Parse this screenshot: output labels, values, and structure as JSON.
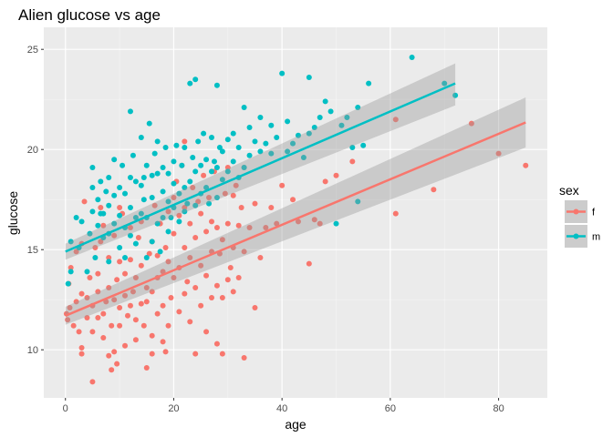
{
  "chart_data": {
    "type": "scatter",
    "title": "Alien glucose vs age",
    "xlabel": "age",
    "ylabel": "glucose",
    "xlim": [
      -4,
      89
    ],
    "ylim": [
      7.6,
      26.1
    ],
    "xticks": [
      0,
      20,
      40,
      60,
      80
    ],
    "yticks": [
      10,
      15,
      20,
      25
    ],
    "grid": true,
    "legend": {
      "title": "sex",
      "placement": "right"
    },
    "series": [
      {
        "name": "f",
        "color": "#f8766d",
        "fit": {
          "x": [
            0,
            85
          ],
          "y": [
            11.7,
            21.35
          ],
          "ci_lower_at_ends": [
            11.25,
            20.1
          ],
          "ci_upper_at_ends": [
            12.15,
            22.6
          ]
        },
        "points": [
          [
            0.2,
            11.8
          ],
          [
            0.4,
            11.5
          ],
          [
            0.6,
            13.3
          ],
          [
            0.8,
            12.1
          ],
          [
            1,
            14.1
          ],
          [
            1.5,
            11.2
          ],
          [
            2,
            12.4
          ],
          [
            2,
            14.9
          ],
          [
            2.5,
            10.9
          ],
          [
            3,
            12.8
          ],
          [
            3,
            10.1
          ],
          [
            3,
            15.3
          ],
          [
            3.5,
            17.4
          ],
          [
            4,
            12.6
          ],
          [
            4,
            11.6
          ],
          [
            4.5,
            13.6
          ],
          [
            5,
            10.9
          ],
          [
            5,
            12.2
          ],
          [
            5,
            8.4
          ],
          [
            5.5,
            15.1
          ],
          [
            6,
            11.6
          ],
          [
            6,
            12.9
          ],
          [
            6,
            13.8
          ],
          [
            6.5,
            15.4
          ],
          [
            7,
            10.6
          ],
          [
            7,
            11.8
          ],
          [
            7,
            16.2
          ],
          [
            7.5,
            12.4
          ],
          [
            8,
            9.7
          ],
          [
            8,
            13.1
          ],
          [
            8,
            14.6
          ],
          [
            8.5,
            11.2
          ],
          [
            9,
            9.9
          ],
          [
            9,
            12.5
          ],
          [
            9,
            15.7
          ],
          [
            9.5,
            13.5
          ],
          [
            10,
            11.2
          ],
          [
            10,
            12.1
          ],
          [
            10,
            14.4
          ],
          [
            10.5,
            16.8
          ],
          [
            11,
            10.2
          ],
          [
            11,
            12.7
          ],
          [
            11,
            13.8
          ],
          [
            11.5,
            11.7
          ],
          [
            12,
            12.2
          ],
          [
            12,
            14.5
          ],
          [
            12,
            16.1
          ],
          [
            12.5,
            12.9
          ],
          [
            13,
            10.5
          ],
          [
            13,
            11.5
          ],
          [
            13,
            13.6
          ],
          [
            13.5,
            15.6
          ],
          [
            14,
            12.3
          ],
          [
            14,
            14.2
          ],
          [
            14,
            16.4
          ],
          [
            14.5,
            11.2
          ],
          [
            15,
            9.1
          ],
          [
            15,
            12.4
          ],
          [
            15,
            13.1
          ],
          [
            15.5,
            14.8
          ],
          [
            16,
            10.7
          ],
          [
            16,
            12.9
          ],
          [
            16,
            15.4
          ],
          [
            16.5,
            17.2
          ],
          [
            17,
            11.8
          ],
          [
            17,
            13.6
          ],
          [
            17,
            14.7
          ],
          [
            17.5,
            16.3
          ],
          [
            18,
            10.4
          ],
          [
            18,
            12.2
          ],
          [
            18,
            13.9
          ],
          [
            18.5,
            15.1
          ],
          [
            19,
            11.2
          ],
          [
            19,
            14.4
          ],
          [
            19,
            16.9
          ],
          [
            19.5,
            12.6
          ],
          [
            20,
            15.8
          ],
          [
            20,
            17.6
          ],
          [
            20,
            13.6
          ],
          [
            20.5,
            18.4
          ],
          [
            21,
            11.9
          ],
          [
            21,
            14.1
          ],
          [
            21,
            16.7
          ],
          [
            21.5,
            19.2
          ],
          [
            22,
            12.8
          ],
          [
            22,
            15.1
          ],
          [
            22,
            17.1
          ],
          [
            22.5,
            13.4
          ],
          [
            23,
            11.4
          ],
          [
            23,
            14.6
          ],
          [
            23,
            16.3
          ],
          [
            23.5,
            18.1
          ],
          [
            24,
            9.8
          ],
          [
            24,
            13.1
          ],
          [
            24,
            15.6
          ],
          [
            24.5,
            17.4
          ],
          [
            25,
            12.2
          ],
          [
            25,
            14.2
          ],
          [
            25,
            16.8
          ],
          [
            25.5,
            18.7
          ],
          [
            26,
            10.9
          ],
          [
            26,
            13.7
          ],
          [
            26,
            15.9
          ],
          [
            26.5,
            17.6
          ],
          [
            27,
            12.6
          ],
          [
            27,
            14.9
          ],
          [
            27,
            16.4
          ],
          [
            27.5,
            18.9
          ],
          [
            28,
            10.3
          ],
          [
            28,
            13.2
          ],
          [
            28,
            16.1
          ],
          [
            28.5,
            14.8
          ],
          [
            29,
            9.8
          ],
          [
            29,
            12.6
          ],
          [
            29,
            15.5
          ],
          [
            29.5,
            17.8
          ],
          [
            30,
            13.5
          ],
          [
            30,
            16.3
          ],
          [
            30,
            19.1
          ],
          [
            30.5,
            14.1
          ],
          [
            31,
            12.9
          ],
          [
            31,
            15.1
          ],
          [
            31,
            17.7
          ],
          [
            31.5,
            18.2
          ],
          [
            32,
            13.6
          ],
          [
            32,
            16.2
          ],
          [
            32.5,
            17.1
          ],
          [
            33,
            9.6
          ],
          [
            33,
            14.9
          ],
          [
            33,
            19.1
          ],
          [
            34,
            16.1
          ],
          [
            35,
            12.1
          ],
          [
            35,
            17.3
          ],
          [
            36,
            14.6
          ],
          [
            37,
            16.1
          ],
          [
            38,
            17.1
          ],
          [
            39,
            16.3
          ],
          [
            40,
            18.2
          ],
          [
            42,
            17.5
          ],
          [
            43,
            16.4
          ],
          [
            45,
            14.3
          ],
          [
            46,
            16.5
          ],
          [
            47,
            16.3
          ],
          [
            48,
            18.4
          ],
          [
            50,
            18.7
          ],
          [
            53,
            19.4
          ],
          [
            61,
            16.8
          ],
          [
            61,
            21.5
          ],
          [
            68,
            18.0
          ],
          [
            75,
            21.3
          ],
          [
            80,
            19.8
          ],
          [
            85,
            19.2
          ],
          [
            8.5,
            9.0
          ],
          [
            18.5,
            9.9
          ],
          [
            3,
            9.8
          ],
          [
            9.5,
            9.3
          ],
          [
            16,
            9.8
          ],
          [
            22,
            20.4
          ],
          [
            10,
            17.1
          ],
          [
            6.5,
            17.1
          ]
        ]
      },
      {
        "name": "m",
        "color": "#00bfc4",
        "fit": {
          "x": [
            0,
            72
          ],
          "y": [
            14.9,
            23.3
          ],
          "ci_lower_at_ends": [
            14.5,
            22.2
          ],
          "ci_upper_at_ends": [
            15.3,
            24.3
          ]
        },
        "points": [
          [
            0.5,
            13.3
          ],
          [
            1,
            15.4
          ],
          [
            1,
            13.9
          ],
          [
            2,
            16.6
          ],
          [
            2.5,
            15.1
          ],
          [
            3,
            16.4
          ],
          [
            4,
            13.9
          ],
          [
            4.5,
            15.8
          ],
          [
            5,
            16.9
          ],
          [
            5,
            18.1
          ],
          [
            5,
            19.1
          ],
          [
            5.5,
            14.6
          ],
          [
            6,
            16.2
          ],
          [
            6,
            17.5
          ],
          [
            6.5,
            18.4
          ],
          [
            7,
            15.6
          ],
          [
            7,
            16.8
          ],
          [
            7.5,
            17.9
          ],
          [
            8,
            14.4
          ],
          [
            8,
            15.8
          ],
          [
            8,
            17.2
          ],
          [
            8,
            18.6
          ],
          [
            9,
            16.3
          ],
          [
            9,
            17.7
          ],
          [
            9,
            19.5
          ],
          [
            10,
            15.1
          ],
          [
            10,
            16.7
          ],
          [
            10,
            18.1
          ],
          [
            10.5,
            19.2
          ],
          [
            11,
            14.6
          ],
          [
            11,
            16.1
          ],
          [
            11,
            17.8
          ],
          [
            12,
            15.7
          ],
          [
            12,
            17.1
          ],
          [
            12,
            18.6
          ],
          [
            12,
            21.9
          ],
          [
            12.5,
            19.7
          ],
          [
            13,
            15.3
          ],
          [
            13,
            16.6
          ],
          [
            13,
            18.4
          ],
          [
            14,
            16.8
          ],
          [
            14,
            18.2
          ],
          [
            14,
            20.6
          ],
          [
            14.5,
            17.5
          ],
          [
            15,
            14.6
          ],
          [
            15,
            16.6
          ],
          [
            15,
            19.2
          ],
          [
            15.5,
            21.3
          ],
          [
            16,
            15.4
          ],
          [
            16,
            17.6
          ],
          [
            16,
            18.7
          ],
          [
            16.5,
            19.8
          ],
          [
            17,
            16.3
          ],
          [
            17,
            18.8
          ],
          [
            17,
            20.4
          ],
          [
            17.5,
            14.9
          ],
          [
            18,
            16.6
          ],
          [
            18,
            17.9
          ],
          [
            18,
            19.1
          ],
          [
            18.5,
            20.1
          ],
          [
            19,
            15.9
          ],
          [
            19,
            17.4
          ],
          [
            19,
            18.8
          ],
          [
            19.5,
            16.6
          ],
          [
            20,
            17.1
          ],
          [
            20,
            18.3
          ],
          [
            20,
            19.4
          ],
          [
            20.5,
            20.2
          ],
          [
            21,
            16.4
          ],
          [
            21,
            17.8
          ],
          [
            21.5,
            19.2
          ],
          [
            22,
            16.9
          ],
          [
            22,
            18.1
          ],
          [
            22,
            20.1
          ],
          [
            22.5,
            17.3
          ],
          [
            23,
            18.4
          ],
          [
            23,
            23.3
          ],
          [
            23.5,
            19.6
          ],
          [
            24,
            17.2
          ],
          [
            24,
            18.9
          ],
          [
            24.5,
            20.4
          ],
          [
            25,
            17.8
          ],
          [
            25,
            19.2
          ],
          [
            25.5,
            20.8
          ],
          [
            26,
            18.1
          ],
          [
            26,
            19.5
          ],
          [
            26.5,
            17.3
          ],
          [
            27,
            18.9
          ],
          [
            27,
            20.6
          ],
          [
            27.5,
            19.4
          ],
          [
            28,
            17.6
          ],
          [
            28,
            19.1
          ],
          [
            28,
            23.2
          ],
          [
            28.5,
            20.1
          ],
          [
            29,
            18.5
          ],
          [
            29,
            19.9
          ],
          [
            30,
            18.9
          ],
          [
            30,
            20.5
          ],
          [
            31,
            19.4
          ],
          [
            31,
            20.8
          ],
          [
            32,
            18.6
          ],
          [
            32,
            20.1
          ],
          [
            33,
            19.1
          ],
          [
            33,
            22.1
          ],
          [
            34,
            19.7
          ],
          [
            34,
            21.1
          ],
          [
            35,
            20.4
          ],
          [
            36,
            19.9
          ],
          [
            37,
            20.3
          ],
          [
            38,
            19.8
          ],
          [
            38,
            21.2
          ],
          [
            39,
            20.6
          ],
          [
            40,
            23.8
          ],
          [
            41,
            19.9
          ],
          [
            42,
            20.3
          ],
          [
            43,
            20.7
          ],
          [
            44,
            19.6
          ],
          [
            45,
            23.6
          ],
          [
            45,
            20.8
          ],
          [
            46,
            21.1
          ],
          [
            47,
            21.6
          ],
          [
            49,
            21.9
          ],
          [
            50,
            16.3
          ],
          [
            51,
            21.2
          ],
          [
            52,
            21.6
          ],
          [
            53,
            20.1
          ],
          [
            54,
            17.4
          ],
          [
            54,
            22.1
          ],
          [
            55,
            20.2
          ],
          [
            56,
            23.3
          ],
          [
            64,
            24.6
          ],
          [
            70,
            23.3
          ],
          [
            72,
            22.7
          ],
          [
            14.5,
            18.6
          ],
          [
            6.5,
            16.8
          ],
          [
            24,
            23.5
          ],
          [
            36,
            21.6
          ],
          [
            41,
            21.4
          ],
          [
            48,
            22.4
          ]
        ]
      }
    ]
  }
}
